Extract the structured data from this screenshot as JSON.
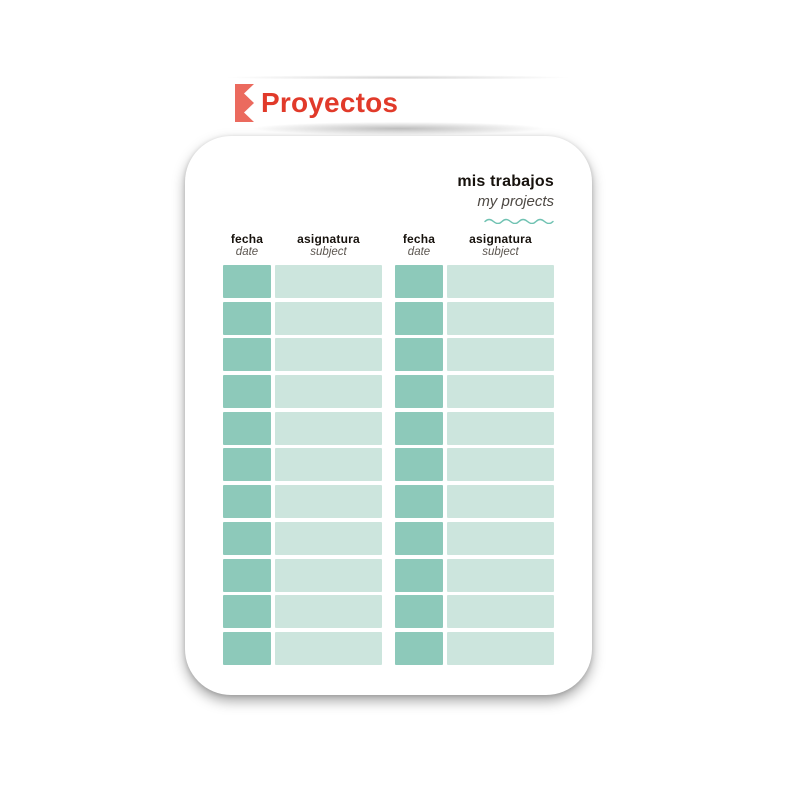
{
  "banner": {
    "title": "Proyectos",
    "title_color": "#e13a2a",
    "icon_color": "#eb6a5e"
  },
  "card": {
    "header": {
      "title": "mis trabajos",
      "subtitle": "my projects",
      "wave_color": "#70c2b2"
    },
    "table": {
      "groups": [
        {
          "date_header": "fecha",
          "date_subheader": "date",
          "subject_header": "asignatura",
          "subject_subheader": "subject"
        },
        {
          "date_header": "fecha",
          "date_subheader": "date",
          "subject_header": "asignatura",
          "subject_subheader": "subject"
        }
      ],
      "rows_per_group": 11,
      "colors": {
        "date_cell": "#8dc9ba",
        "subject_cell": "#cce5dd"
      }
    }
  }
}
